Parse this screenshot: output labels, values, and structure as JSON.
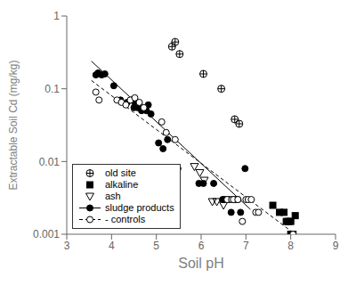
{
  "chart_data": {
    "type": "scatter",
    "xlabel": "Soil pH",
    "ylabel": "Extractable Soil Cd (mg/kg)",
    "xlim": [
      3,
      9
    ],
    "xticks": [
      3,
      4,
      5,
      6,
      7,
      8,
      9
    ],
    "ylim": [
      0.001,
      1
    ],
    "yticks": [
      0.001,
      0.01,
      0.1,
      1
    ],
    "log": "y",
    "grid": false,
    "legend": "lower left",
    "series": [
      {
        "name": "old site",
        "marker": "circle_cross",
        "color": "black",
        "x": [
          5.35,
          5.42,
          5.52,
          6.05,
          6.45,
          6.75,
          6.85
        ],
        "values": [
          0.38,
          0.44,
          0.3,
          0.16,
          0.1,
          0.038,
          0.033
        ]
      },
      {
        "name": "alkaline",
        "marker": "square",
        "color": "black",
        "x": [
          7.6,
          7.75,
          7.85,
          7.9,
          7.95,
          8.0,
          8.0,
          8.05,
          8.1
        ],
        "values": [
          0.0025,
          0.002,
          0.002,
          0.0015,
          0.0015,
          0.001,
          0.0015,
          0.001,
          0.0018
        ]
      },
      {
        "name": "ash",
        "marker": "triangle_down",
        "color": "black",
        "x": [
          5.85,
          5.97,
          6.07,
          6.25,
          6.35,
          6.5
        ],
        "values": [
          0.0085,
          0.007,
          0.0055,
          0.0028,
          0.0028,
          0.0025
        ]
      },
      {
        "name": "sludge products",
        "marker": "circle_filled",
        "color": "black",
        "line_style": "solid",
        "x": [
          3.65,
          3.7,
          3.78,
          3.85,
          4.05,
          4.2,
          4.35,
          4.45,
          4.5,
          4.52,
          4.58,
          4.62,
          4.67,
          4.72,
          4.78,
          4.82,
          4.88,
          5.05,
          5.15,
          5.25,
          5.48,
          5.95,
          6.05,
          6.28,
          6.48,
          6.52,
          6.57,
          6.62,
          6.67,
          6.72,
          6.78,
          6.82,
          6.88,
          6.98
        ],
        "values": [
          0.155,
          0.165,
          0.155,
          0.16,
          0.11,
          0.07,
          0.065,
          0.07,
          0.055,
          0.065,
          0.055,
          0.06,
          0.05,
          0.055,
          0.05,
          0.06,
          0.045,
          0.018,
          0.015,
          0.02,
          0.008,
          0.005,
          0.005,
          0.005,
          0.003,
          0.003,
          0.003,
          0.003,
          0.002,
          0.003,
          0.003,
          0.003,
          0.002,
          0.008
        ],
        "fit_x": [
          3.55,
          7.1
        ],
        "fit_values": [
          0.24,
          0.0022
        ]
      },
      {
        "name": "- controls",
        "marker": "circle_open",
        "color": "black",
        "line_style": "dashed",
        "x": [
          3.65,
          3.72,
          4.12,
          4.22,
          4.32,
          4.42,
          4.52,
          4.62,
          4.72,
          5.12,
          5.22,
          5.42,
          6.58,
          6.68,
          6.72,
          6.82,
          6.92,
          7.0,
          7.05,
          7.12,
          7.22,
          7.28,
          8.05
        ],
        "values": [
          0.09,
          0.07,
          0.07,
          0.065,
          0.06,
          0.07,
          0.075,
          0.065,
          0.055,
          0.035,
          0.025,
          0.02,
          0.003,
          0.003,
          0.003,
          0.003,
          0.0015,
          0.003,
          0.003,
          0.003,
          0.002,
          0.002,
          0.001
        ],
        "fit_x": [
          3.55,
          8.1
        ],
        "fit_values": [
          0.13,
          0.001
        ]
      }
    ]
  }
}
